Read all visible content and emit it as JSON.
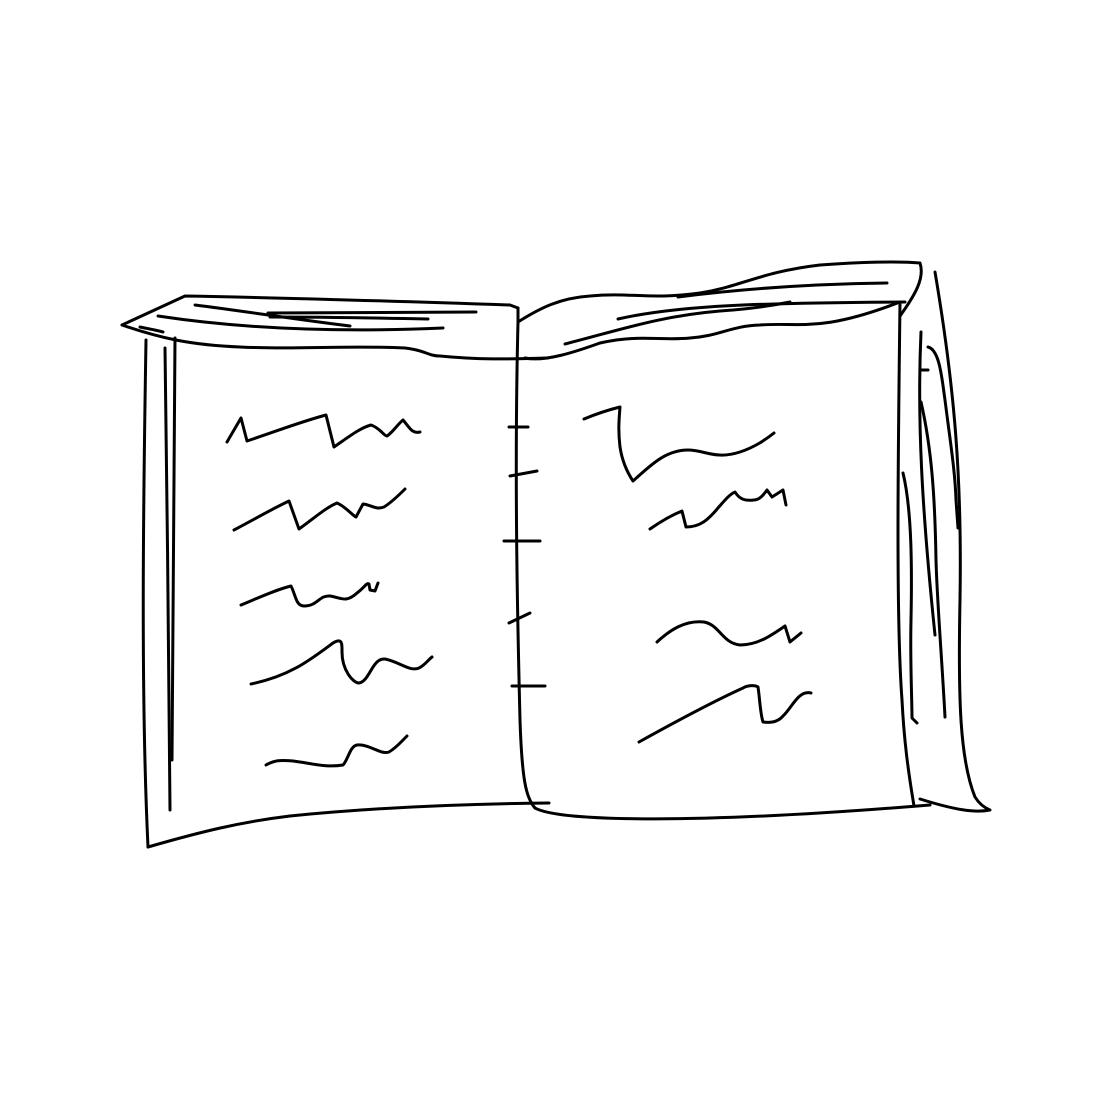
{
  "drawing": {
    "subject": "open-book-sketch",
    "style": "black-ink-line-drawing",
    "background_color": "#ffffff",
    "stroke_color": "#000000"
  }
}
